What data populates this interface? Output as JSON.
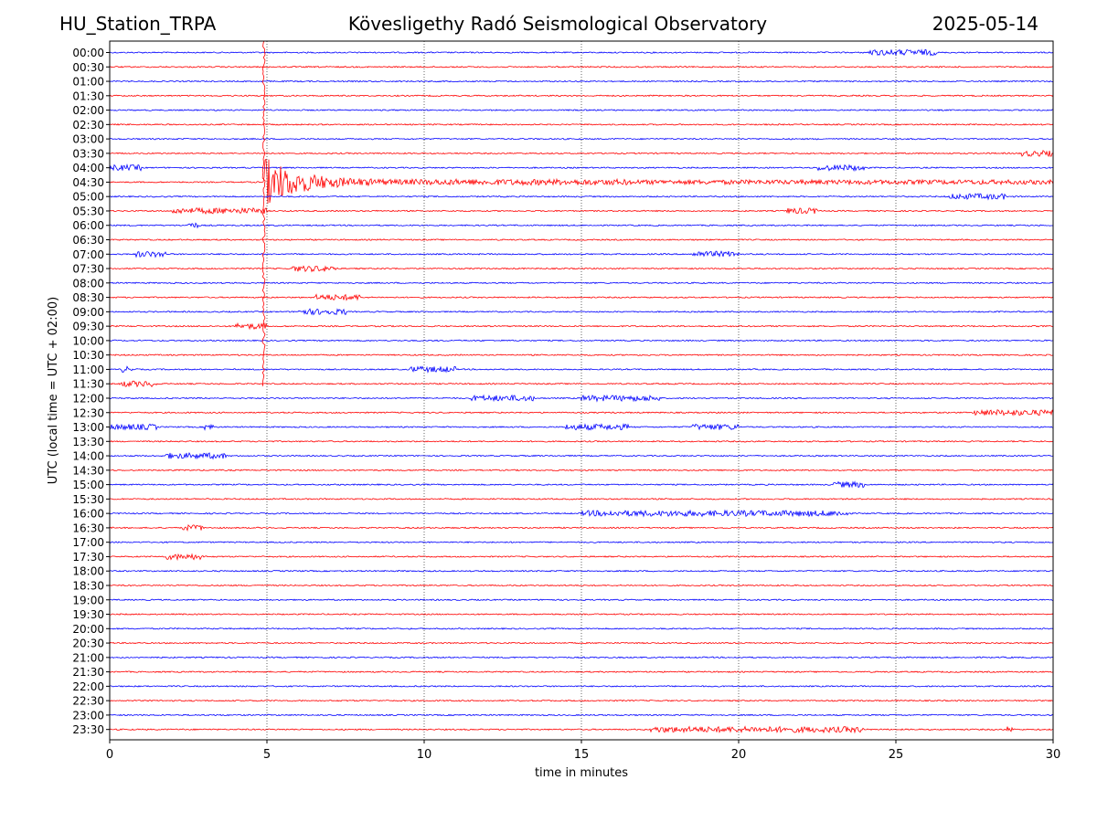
{
  "header": {
    "station": "HU_Station_TRPA",
    "observatory": "Kövesligethy Radó Seismological Observatory",
    "date": "2025-05-14"
  },
  "chart_data": {
    "type": "line",
    "title": "Kövesligethy Radó Seismological Observatory",
    "xlabel": "time in minutes",
    "ylabel": "UTC (local time = UTC + 02:00)",
    "xlim": [
      0,
      30
    ],
    "xticks": [
      0,
      5,
      10,
      15,
      20,
      25,
      30
    ],
    "vertical_gridlines_at": [
      5,
      10,
      15,
      20,
      25
    ],
    "grid_style": "dotted vertical",
    "row_labels": [
      "00:00",
      "00:30",
      "01:00",
      "01:30",
      "02:00",
      "02:30",
      "03:00",
      "03:30",
      "04:00",
      "04:30",
      "05:00",
      "05:30",
      "06:00",
      "06:30",
      "07:00",
      "07:30",
      "08:00",
      "08:30",
      "09:00",
      "09:30",
      "10:00",
      "10:30",
      "11:00",
      "11:30",
      "12:00",
      "12:30",
      "13:00",
      "13:30",
      "14:00",
      "14:30",
      "15:00",
      "15:30",
      "16:00",
      "16:30",
      "17:00",
      "17:30",
      "18:00",
      "18:30",
      "19:00",
      "19:30",
      "20:00",
      "20:30",
      "21:00",
      "21:30",
      "22:00",
      "22:30",
      "23:00",
      "23:30"
    ],
    "trace_colors": [
      "#0000ff",
      "#ff0000"
    ],
    "event": {
      "description": "large earthquake signal",
      "row": "04:30",
      "onset_minute": 4.9,
      "coda_end_minute": 9.5
    },
    "bursts": [
      {
        "row": "00:00",
        "start": 24.1,
        "end": 26.3
      },
      {
        "row": "03:30",
        "start": 29.0,
        "end": 30.0
      },
      {
        "row": "04:00",
        "start": 0.0,
        "end": 1.0
      },
      {
        "row": "04:00",
        "start": 22.5,
        "end": 24.0
      },
      {
        "row": "04:30",
        "start": 9.5,
        "end": 16.5
      },
      {
        "row": "05:00",
        "start": 26.7,
        "end": 28.5
      },
      {
        "row": "05:30",
        "start": 2.0,
        "end": 5.0
      },
      {
        "row": "05:30",
        "start": 21.5,
        "end": 22.5
      },
      {
        "row": "06:00",
        "start": 2.5,
        "end": 2.8
      },
      {
        "row": "07:00",
        "start": 0.8,
        "end": 1.8
      },
      {
        "row": "07:00",
        "start": 18.5,
        "end": 20.0
      },
      {
        "row": "07:30",
        "start": 5.8,
        "end": 7.2
      },
      {
        "row": "08:30",
        "start": 6.5,
        "end": 8.0
      },
      {
        "row": "09:00",
        "start": 6.0,
        "end": 7.5
      },
      {
        "row": "09:30",
        "start": 4.0,
        "end": 5.0
      },
      {
        "row": "11:00",
        "start": 0.3,
        "end": 0.7
      },
      {
        "row": "11:00",
        "start": 9.5,
        "end": 11.0
      },
      {
        "row": "11:30",
        "start": 0.3,
        "end": 1.5
      },
      {
        "row": "12:00",
        "start": 11.5,
        "end": 13.5
      },
      {
        "row": "12:00",
        "start": 15.0,
        "end": 17.5
      },
      {
        "row": "12:30",
        "start": 27.5,
        "end": 30.0
      },
      {
        "row": "13:00",
        "start": 0.0,
        "end": 1.5
      },
      {
        "row": "13:00",
        "start": 3.0,
        "end": 3.3
      },
      {
        "row": "13:00",
        "start": 14.5,
        "end": 16.5
      },
      {
        "row": "13:00",
        "start": 18.5,
        "end": 20.0
      },
      {
        "row": "14:00",
        "start": 1.7,
        "end": 3.7
      },
      {
        "row": "15:00",
        "start": 23.0,
        "end": 24.0
      },
      {
        "row": "16:00",
        "start": 15.0,
        "end": 23.5
      },
      {
        "row": "16:30",
        "start": 2.3,
        "end": 3.0
      },
      {
        "row": "17:30",
        "start": 1.8,
        "end": 3.0
      },
      {
        "row": "23:30",
        "start": 17.2,
        "end": 24.0
      },
      {
        "row": "23:30",
        "start": 28.5,
        "end": 28.7
      }
    ]
  }
}
